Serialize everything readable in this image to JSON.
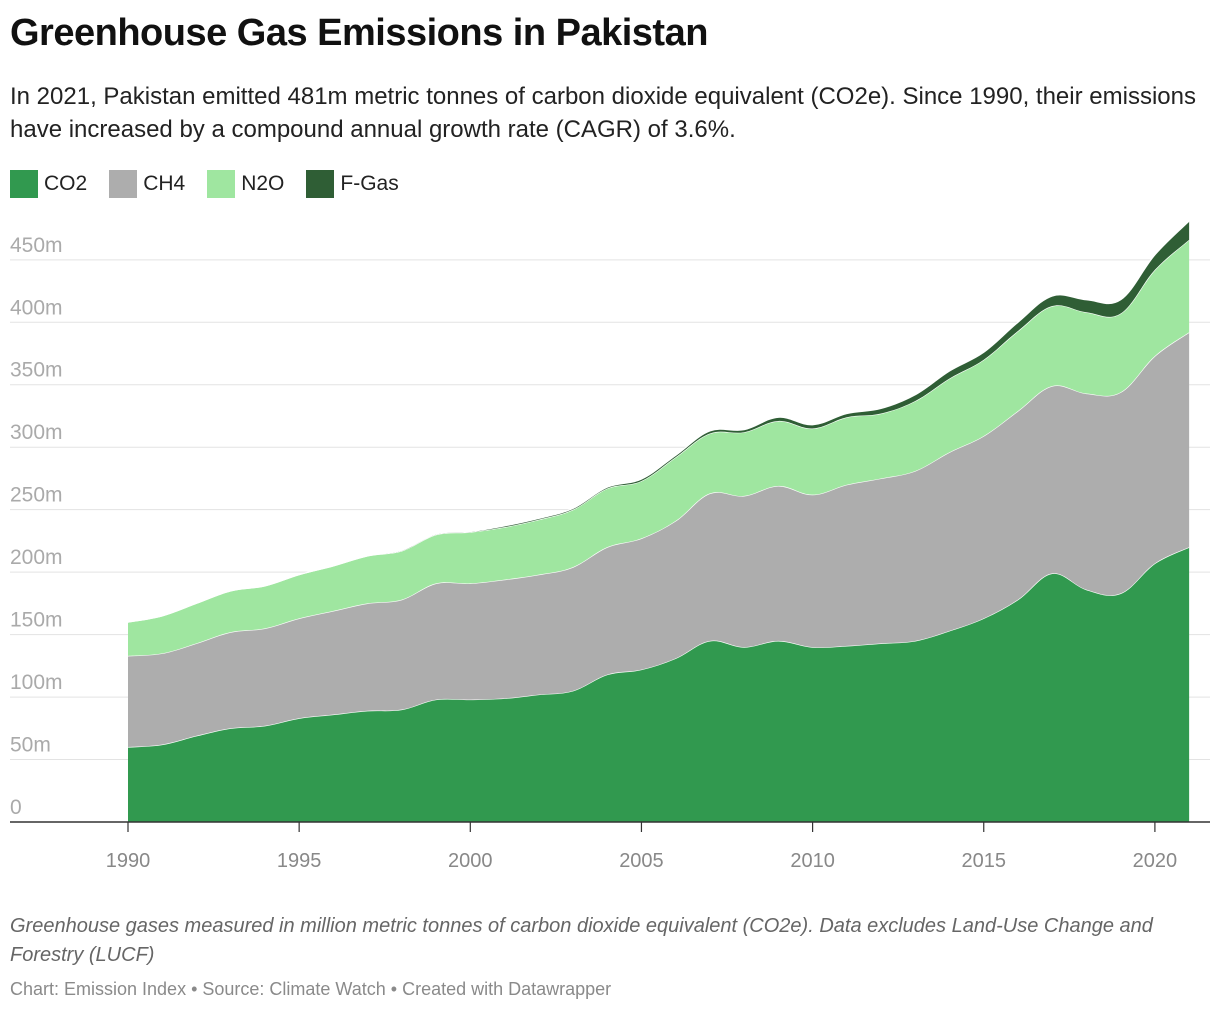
{
  "title": "Greenhouse Gas Emissions in Pakistan",
  "subtitle": "In 2021, Pakistan emitted 481m metric tonnes of carbon dioxide equivalent (CO2e). Since 1990, their emissions have increased by a compound annual growth rate (CAGR) of 3.6%.",
  "notes": "Greenhouse gases measured in million metric tonnes of carbon dioxide equivalent (CO2e). Data excludes Land-Use Change and Forestry (LUCF)",
  "byline": "Chart: Emission Index • Source: Climate Watch • Created with Datawrapper",
  "legend": [
    {
      "label": "CO2",
      "color": "#31994f"
    },
    {
      "label": "CH4",
      "color": "#adadad"
    },
    {
      "label": "N2O",
      "color": "#9fe6a0"
    },
    {
      "label": "F-Gas",
      "color": "#2f5e35"
    }
  ],
  "chart_data": {
    "type": "area",
    "stacked": true,
    "x": [
      1990,
      1991,
      1992,
      1993,
      1994,
      1995,
      1996,
      1997,
      1998,
      1999,
      2000,
      2001,
      2002,
      2003,
      2004,
      2005,
      2006,
      2007,
      2008,
      2009,
      2010,
      2011,
      2012,
      2013,
      2014,
      2015,
      2016,
      2017,
      2018,
      2019,
      2020,
      2021
    ],
    "series": [
      {
        "name": "CO2",
        "color": "#31994f",
        "values": [
          60,
          62,
          69,
          75,
          77,
          83,
          86,
          89,
          90,
          98,
          98,
          99,
          102,
          105,
          118,
          122,
          131,
          145,
          140,
          145,
          140,
          141,
          143,
          145,
          153,
          163,
          178,
          199,
          186,
          183,
          207,
          220
        ]
      },
      {
        "name": "CH4",
        "color": "#adadad",
        "values": [
          73,
          73,
          74,
          77,
          78,
          80,
          83,
          86,
          88,
          93,
          93,
          95,
          96,
          99,
          102,
          105,
          110,
          118,
          121,
          124,
          122,
          129,
          132,
          136,
          143,
          146,
          151,
          150,
          157,
          161,
          166,
          172
        ]
      },
      {
        "name": "N2O",
        "color": "#9fe6a0",
        "values": [
          27,
          30,
          32,
          33,
          34,
          35,
          36,
          38,
          39,
          39,
          41,
          42,
          44,
          46,
          47,
          46,
          51,
          48,
          51,
          52,
          53,
          54,
          52,
          56,
          59,
          61,
          64,
          64,
          65,
          63,
          69,
          74
        ]
      },
      {
        "name": "F-Gas",
        "color": "#2f5e35",
        "values": [
          0,
          0,
          0,
          0,
          0,
          0,
          0,
          0,
          0.5,
          0.5,
          0.5,
          1,
          1,
          1,
          1,
          1.5,
          1.5,
          2,
          2,
          3,
          3,
          3,
          4,
          5,
          6,
          6,
          7,
          8,
          10,
          11,
          12,
          15
        ]
      }
    ],
    "y_ticks": [
      "0",
      "50m",
      "100m",
      "150m",
      "200m",
      "250m",
      "300m",
      "350m",
      "400m",
      "450m"
    ],
    "x_ticks": [
      1990,
      1995,
      2000,
      2005,
      2010,
      2015,
      2020
    ],
    "xlim": [
      1987.5,
      2021.8
    ],
    "ylim": [
      0,
      470
    ],
    "grid": true,
    "legend_position": "top-left"
  }
}
